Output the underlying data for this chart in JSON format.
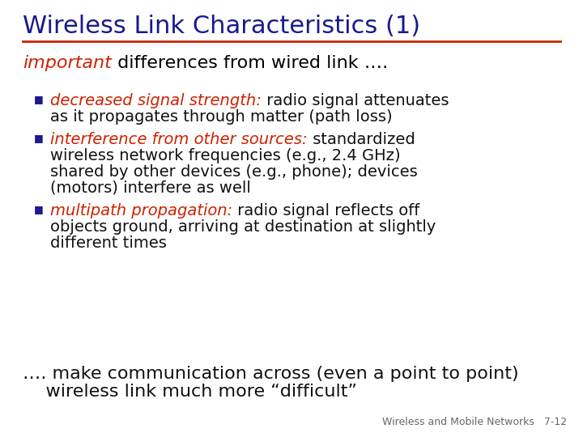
{
  "title": "Wireless Link Characteristics (1)",
  "title_color": "#1a1a8c",
  "title_underline_color": "#cc2200",
  "bg_color": "#ffffff",
  "intro_italic": "important",
  "intro_rest": " differences from wired link ….",
  "intro_italic_color": "#cc2200",
  "intro_rest_color": "#000000",
  "bullets": [
    {
      "italic_part": "decreased signal strength:",
      "normal_part": " radio signal attenuates\nas it propagates through matter (path loss)"
    },
    {
      "italic_part": "interference from other sources:",
      "normal_part": " standardized\nwireless network frequencies (e.g., 2.4 GHz)\nshared by other devices (e.g., phone); devices\n(motors) interfere as well"
    },
    {
      "italic_part": "multipath propagation:",
      "normal_part": " radio signal reflects off\nobjects ground, arriving at destination at slightly\ndifferent times"
    }
  ],
  "bullet_italic_color": "#cc2200",
  "bullet_normal_color": "#111111",
  "bullet_square_color": "#1a1a8c",
  "footer_line1": "…. make communication across (even a point to point)",
  "footer_line2": "    wireless link much more “difficult”",
  "footer_color": "#111111",
  "watermark": "Wireless and Mobile Networks   7-12",
  "watermark_color": "#666666",
  "title_fontsize": 22,
  "intro_fontsize": 16,
  "bullet_fontsize": 14,
  "footer_fontsize": 16,
  "watermark_fontsize": 9
}
